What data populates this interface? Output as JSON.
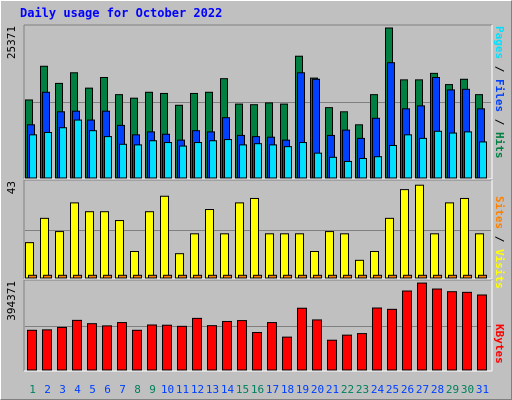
{
  "title": "Daily usage for October 2022",
  "colors": {
    "hits": "#008040",
    "files": "#0040ff",
    "pages": "#00e0ff",
    "visits": "#ffff00",
    "sites": "#ff8000",
    "kbytes": "#ff0000",
    "weekday": "#008040",
    "weekend": "#00805c",
    "panel": "#c0c0c0"
  },
  "legend": {
    "pages": "Pages",
    "files": "Files",
    "hits": "Hits",
    "sites": "Sites",
    "visits": "Visits",
    "kbytes": "KBytes",
    "sep": " / "
  },
  "chart_data": [
    {
      "type": "bar",
      "panel": "hits-files-pages",
      "max_label": "25371",
      "ylim": [
        0,
        25371
      ],
      "categories": [
        "1",
        "2",
        "3",
        "4",
        "5",
        "6",
        "7",
        "8",
        "9",
        "10",
        "11",
        "12",
        "13",
        "14",
        "15",
        "16",
        "17",
        "18",
        "19",
        "20",
        "21",
        "22",
        "23",
        "24",
        "25",
        "26",
        "27",
        "28",
        "29",
        "30",
        "31"
      ],
      "series": [
        {
          "name": "Hits",
          "values": [
            13200,
            18900,
            16000,
            17800,
            15200,
            17000,
            14100,
            13500,
            14500,
            14300,
            12300,
            14300,
            14500,
            16800,
            12500,
            12400,
            12700,
            12500,
            20600,
            16900,
            11900,
            11200,
            9000,
            14100,
            25370,
            16600,
            16600,
            17700,
            15800,
            16700,
            14100
          ]
        },
        {
          "name": "Files",
          "values": [
            9000,
            14500,
            11200,
            11300,
            9800,
            11300,
            8900,
            7300,
            7800,
            7400,
            6400,
            8000,
            7800,
            10200,
            7200,
            7000,
            6900,
            6400,
            17800,
            16700,
            7200,
            8100,
            6700,
            10100,
            19500,
            11700,
            12200,
            17000,
            14900,
            15000,
            11700
          ]
        },
        {
          "name": "Pages",
          "values": [
            7300,
            7700,
            8500,
            9800,
            8000,
            7000,
            5700,
            5600,
            6300,
            6000,
            5400,
            6000,
            6300,
            6500,
            5600,
            5800,
            5600,
            5300,
            6000,
            4200,
            3500,
            2800,
            3300,
            3600,
            5500,
            7300,
            6700,
            7900,
            7600,
            7800,
            6100
          ]
        }
      ]
    },
    {
      "type": "bar",
      "panel": "visits-sites",
      "max_label": "43",
      "ylim": [
        0,
        43
      ],
      "categories": [
        "1",
        "2",
        "3",
        "4",
        "5",
        "6",
        "7",
        "8",
        "9",
        "10",
        "11",
        "12",
        "13",
        "14",
        "15",
        "16",
        "17",
        "18",
        "19",
        "20",
        "21",
        "22",
        "23",
        "24",
        "25",
        "26",
        "27",
        "28",
        "29",
        "30",
        "31"
      ],
      "series": [
        {
          "name": "Visits",
          "values": [
            16,
            27,
            21,
            34,
            30,
            30,
            26,
            12,
            30,
            37,
            11,
            20,
            31,
            20,
            34,
            36,
            20,
            20,
            20,
            12,
            21,
            20,
            8,
            12,
            27,
            40,
            42,
            20,
            34,
            36,
            20
          ]
        },
        {
          "name": "Sites",
          "values": [
            1,
            1,
            1,
            1,
            1,
            1,
            1,
            1,
            1,
            1,
            1,
            1,
            1,
            1,
            1,
            1,
            1,
            1,
            1,
            1,
            1,
            1,
            1,
            1,
            1,
            1,
            1,
            1,
            1,
            1,
            1
          ]
        }
      ]
    },
    {
      "type": "bar",
      "panel": "kbytes",
      "max_label": "394371",
      "ylim": [
        0,
        394371
      ],
      "categories": [
        "1",
        "2",
        "3",
        "4",
        "5",
        "6",
        "7",
        "8",
        "9",
        "10",
        "11",
        "12",
        "13",
        "14",
        "15",
        "16",
        "17",
        "18",
        "19",
        "20",
        "21",
        "22",
        "23",
        "24",
        "25",
        "26",
        "27",
        "28",
        "29",
        "30",
        "31"
      ],
      "series": [
        {
          "name": "KBytes",
          "values": [
            180000,
            182000,
            193000,
            225000,
            210000,
            200000,
            215000,
            180000,
            204000,
            203000,
            198000,
            234000,
            201000,
            220000,
            224000,
            170000,
            215000,
            149000,
            280000,
            227000,
            135000,
            158000,
            165000,
            281000,
            275000,
            358000,
            394000,
            367000,
            355000,
            352000,
            340000
          ]
        }
      ]
    }
  ],
  "day_labels": [
    "1",
    "2",
    "3",
    "4",
    "5",
    "6",
    "7",
    "8",
    "9",
    "10",
    "11",
    "12",
    "13",
    "14",
    "15",
    "16",
    "17",
    "18",
    "19",
    "20",
    "21",
    "22",
    "23",
    "24",
    "25",
    "26",
    "27",
    "28",
    "29",
    "30",
    "31"
  ],
  "weekend_days": [
    1,
    8,
    9,
    15,
    16,
    22,
    23,
    29,
    30
  ]
}
